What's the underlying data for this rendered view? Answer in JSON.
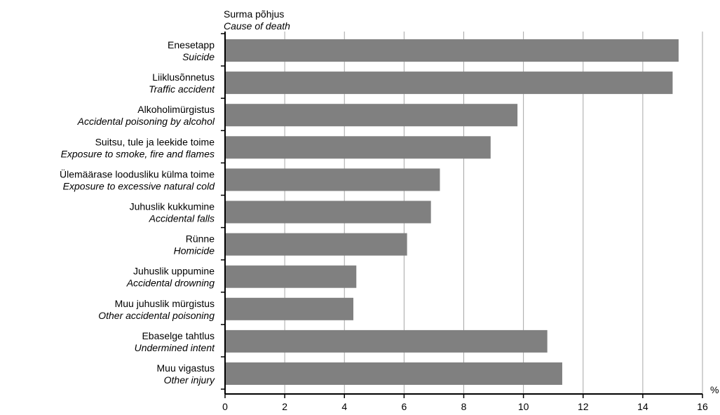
{
  "chart_data": {
    "type": "bar",
    "orientation": "horizontal",
    "title": "Surma põhjus",
    "subtitle": "Cause of death",
    "xlabel": "%",
    "xlim": [
      0,
      16
    ],
    "xticks": [
      0,
      2,
      4,
      6,
      8,
      10,
      12,
      14,
      16
    ],
    "grid": true,
    "categories": [
      {
        "et": "Enesetapp",
        "en": "Suicide"
      },
      {
        "et": "Liiklusõnnetus",
        "en": "Traffic  accident"
      },
      {
        "et": "Alkoholimürgistus",
        "en": "Accidental poisoning by alcohol"
      },
      {
        "et": "Suitsu, tule ja leekide toime",
        "en": "Exposure to smoke, fire and flames"
      },
      {
        "et": "Ülemäärase loodusliku külma toime",
        "en": "Exposure to excessive natural cold"
      },
      {
        "et": "Juhuslik kukkumine",
        "en": "Accidental falls"
      },
      {
        "et": "Rünne",
        "en": "Homicide"
      },
      {
        "et": "Juhuslik uppumine",
        "en": "Accidental drowning"
      },
      {
        "et": "Muu juhuslik mürgistus",
        "en": "Other accidental poisoning"
      },
      {
        "et": "Ebaselge tahtlus",
        "en": "Undermined intent"
      },
      {
        "et": "Muu vigastus",
        "en": "Other injury"
      }
    ],
    "values": [
      15.2,
      15.0,
      9.8,
      8.9,
      7.2,
      6.9,
      6.1,
      4.4,
      4.3,
      10.8,
      11.3
    ],
    "colors": {
      "bar": "#808080",
      "grid": "#a6a6a6",
      "axis": "#000000"
    }
  }
}
